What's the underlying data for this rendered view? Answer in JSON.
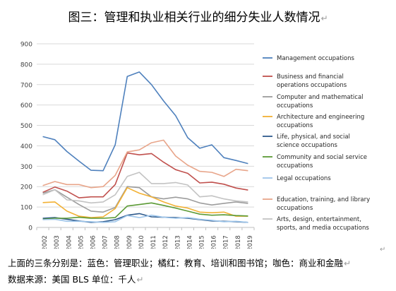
{
  "figure": {
    "title": "图三：管理和执业相关行业的细分失业人数情况",
    "paragraph_mark": "↵",
    "caption_line1": "上面的三条分别是：蓝色：管理职业；橘红：教育、培训和图书馆；咖色：商业和金融",
    "caption_line2": "数据来源：美国 BLS 单位：千人"
  },
  "chart_data": {
    "type": "line",
    "x": [
      2002,
      2003,
      2004,
      2005,
      2006,
      2007,
      2008,
      2009,
      2010,
      2011,
      2012,
      2013,
      2014,
      2015,
      2016,
      2017,
      2018,
      2019
    ],
    "ylim": [
      0,
      900
    ],
    "yticks": [
      0,
      100,
      200,
      300,
      400,
      500,
      600,
      700,
      800,
      900
    ],
    "grid": true,
    "legend_position": "right",
    "series": [
      {
        "name": "Management occupations",
        "color": "#4f81bd",
        "values": [
          445,
          430,
          372,
          325,
          280,
          278,
          405,
          740,
          762,
          700,
          620,
          548,
          440,
          388,
          405,
          342,
          328,
          313
        ]
      },
      {
        "name": "Business and financial operations occupations",
        "color": "#c0504d",
        "values": [
          172,
          198,
          178,
          145,
          150,
          150,
          210,
          365,
          356,
          362,
          320,
          283,
          265,
          218,
          222,
          212,
          193,
          183
        ]
      },
      {
        "name": "Computer and mathematical occupations",
        "color": "#9d9d9d",
        "values": [
          168,
          185,
          148,
          112,
          80,
          75,
          98,
          200,
          195,
          150,
          140,
          148,
          140,
          120,
          110,
          118,
          125,
          118
        ]
      },
      {
        "name": "Architecture and engineering occupations",
        "color": "#f2b134",
        "values": [
          122,
          125,
          80,
          55,
          48,
          52,
          92,
          195,
          168,
          150,
          125,
          105,
          95,
          75,
          72,
          75,
          55,
          55
        ]
      },
      {
        "name": "Life, physical, and social science occupations",
        "color": "#2e5a8c",
        "values": [
          45,
          48,
          40,
          32,
          25,
          28,
          38,
          60,
          68,
          52,
          50,
          48,
          45,
          38,
          32,
          30,
          28,
          25
        ]
      },
      {
        "name": "Community and social service occupations",
        "color": "#5b9a35",
        "values": [
          40,
          45,
          45,
          50,
          45,
          45,
          48,
          105,
          112,
          120,
          108,
          95,
          80,
          65,
          60,
          62,
          58,
          56
        ]
      },
      {
        "name": "Legal occupations",
        "color": "#9ec5ea",
        "values": [
          38,
          40,
          30,
          30,
          28,
          25,
          28,
          58,
          48,
          60,
          50,
          45,
          48,
          40,
          35,
          28,
          30,
          25
        ]
      },
      {
        "name": "Education, training, and library occupations",
        "color": "#e8a58a",
        "values": [
          205,
          225,
          210,
          210,
          195,
          200,
          255,
          370,
          380,
          415,
          428,
          350,
          305,
          275,
          270,
          250,
          285,
          278
        ]
      },
      {
        "name": "Arts, design, entertainment, sports, and media occupations",
        "color": "#c3c3c3",
        "values": [
          160,
          185,
          135,
          130,
          120,
          125,
          160,
          250,
          270,
          215,
          215,
          220,
          208,
          150,
          155,
          140,
          130,
          125
        ]
      }
    ]
  }
}
